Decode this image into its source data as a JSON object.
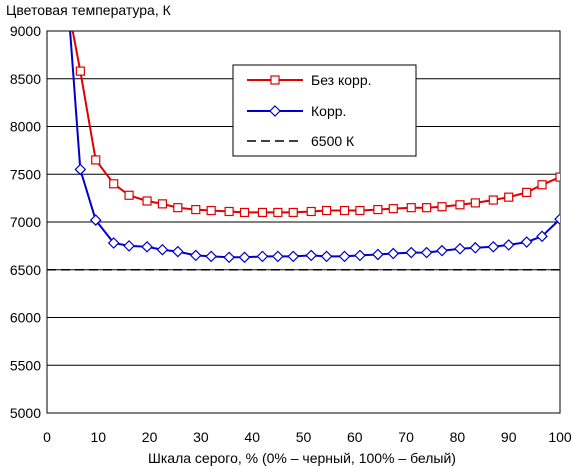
{
  "chart_data": {
    "type": "line",
    "title": "",
    "ylabel": "Цветовая температура, К",
    "xlabel": "Шкала серого, % (0% – черный, 100% – белый)",
    "xlim": [
      0,
      100
    ],
    "ylim": [
      5000,
      9000
    ],
    "x_ticks": [
      0,
      10,
      20,
      30,
      40,
      50,
      60,
      70,
      80,
      90,
      100
    ],
    "y_ticks": [
      5000,
      5500,
      6000,
      6500,
      7000,
      7500,
      8000,
      8500,
      9000
    ],
    "grid": "horizontal",
    "legend_position": "top-center",
    "series": [
      {
        "name": "Без корр.",
        "color": "#e00000",
        "marker": "square",
        "x": [
          5,
          6.5,
          9.5,
          13,
          16,
          19.5,
          22.5,
          25.5,
          29,
          32,
          35.5,
          38.5,
          42,
          45,
          48,
          51.5,
          54.5,
          58,
          61,
          64.5,
          67.5,
          71,
          74,
          77,
          80.5,
          83.5,
          87,
          90,
          93.5,
          96.5,
          100
        ],
        "values": [
          9000,
          8580,
          7650,
          7400,
          7280,
          7220,
          7190,
          7150,
          7130,
          7120,
          7110,
          7100,
          7100,
          7100,
          7100,
          7110,
          7120,
          7120,
          7120,
          7130,
          7140,
          7150,
          7150,
          7160,
          7180,
          7200,
          7230,
          7260,
          7310,
          7390,
          7470
        ]
      },
      {
        "name": "Корр.",
        "color": "#0000cc",
        "marker": "diamond",
        "x": [
          4.5,
          6.5,
          9.5,
          13,
          16,
          19.5,
          22.5,
          25.5,
          29,
          32,
          35.5,
          38.5,
          42,
          45,
          48,
          51.5,
          54.5,
          58,
          61,
          64.5,
          67.5,
          71,
          74,
          77,
          80.5,
          83.5,
          87,
          90,
          93.5,
          96.5,
          100
        ],
        "values": [
          9000,
          7550,
          7020,
          6780,
          6750,
          6740,
          6710,
          6690,
          6650,
          6640,
          6630,
          6630,
          6640,
          6640,
          6640,
          6650,
          6640,
          6640,
          6650,
          6660,
          6670,
          6680,
          6680,
          6700,
          6720,
          6730,
          6740,
          6760,
          6790,
          6850,
          7030
        ]
      },
      {
        "name": "6500 К",
        "color": "#000000",
        "marker": "none",
        "dashed": true,
        "x": [
          0,
          100
        ],
        "values": [
          6500,
          6500
        ]
      }
    ]
  }
}
